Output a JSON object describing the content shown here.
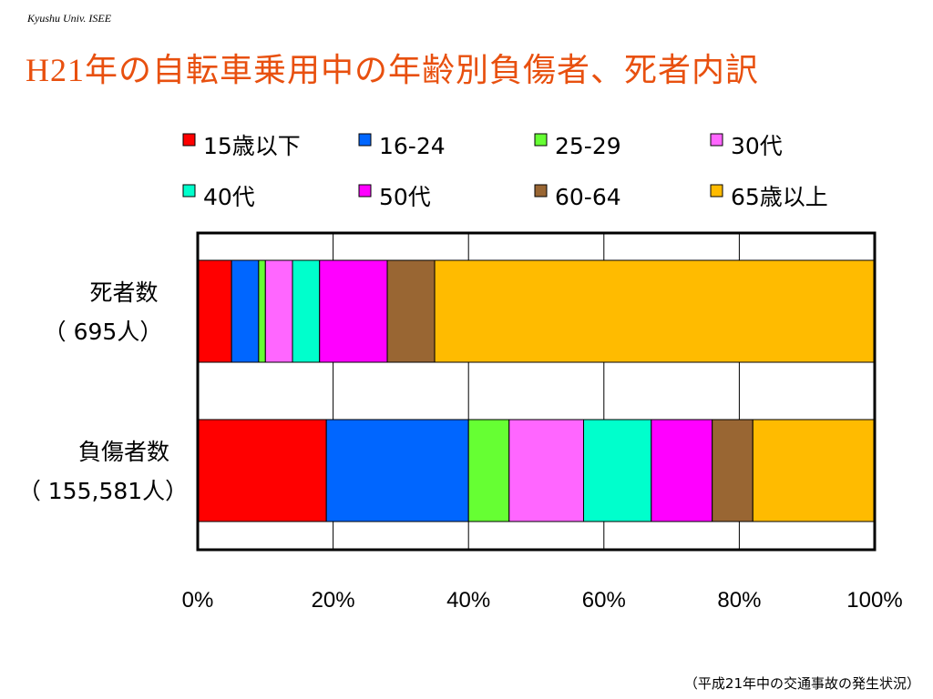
{
  "header_note": "Kyushu Univ. ISEE",
  "title": "H21年の自転車乗用中の年齢別負傷者、死者内訳",
  "footnote": "（平成21年中の交通事故の発生状況）",
  "chart_data": {
    "type": "bar",
    "orientation": "horizontal",
    "stacked": "percent",
    "title": "H21年の自転車乗用中の年齢別負傷者、死者内訳",
    "categories": [
      {
        "label": "死者数",
        "sublabel": "（ 695人）"
      },
      {
        "label": "負傷者数",
        "sublabel": "（ 155,581人）"
      }
    ],
    "xlim": [
      0,
      100
    ],
    "xticks": [
      "0%",
      "20%",
      "40%",
      "60%",
      "80%",
      "100%"
    ],
    "grid": true,
    "legend_position": "top",
    "series": [
      {
        "name": "15歳以下",
        "color": "#ff0000",
        "values": [
          5,
          19
        ]
      },
      {
        "name": "16-24",
        "color": "#0066ff",
        "values": [
          4,
          21
        ]
      },
      {
        "name": "25-29",
        "color": "#66ff33",
        "values": [
          1,
          6
        ]
      },
      {
        "name": "30代",
        "color": "#ff66ff",
        "values": [
          4,
          11
        ]
      },
      {
        "name": "40代",
        "color": "#00ffcc",
        "values": [
          4,
          10
        ]
      },
      {
        "name": "50代",
        "color": "#ff00ff",
        "values": [
          10,
          9
        ]
      },
      {
        "name": "60-64",
        "color": "#996633",
        "values": [
          7,
          6
        ]
      },
      {
        "name": "65歳以上",
        "color": "#ffbb00",
        "values": [
          65,
          18
        ]
      }
    ]
  }
}
